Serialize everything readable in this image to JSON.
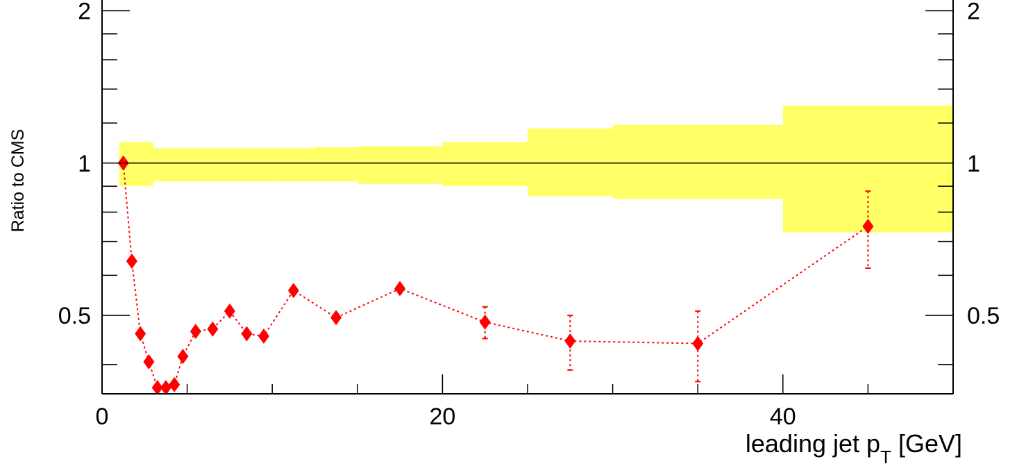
{
  "chart_data": {
    "type": "scatter",
    "title": "",
    "xlabel": "leading jet p",
    "xlabel_sub": "T",
    "xlabel_unit": " [GeV]",
    "ylabel": "Ratio to CMS",
    "xlim": [
      0,
      50
    ],
    "ylim": [
      0.35,
      2.1
    ],
    "x_ticks": [
      0,
      20,
      40
    ],
    "y_ticks": [
      0.5,
      1,
      2
    ],
    "y_tick_labels": [
      "0.5",
      "1",
      "2"
    ],
    "y_scale": "log",
    "reference_line": 1,
    "colors": {
      "band": "#ffff66",
      "points": "#ff0000",
      "axes": "#000000"
    },
    "uncertainty_band": {
      "name": "",
      "bins": [
        {
          "x0": 1,
          "x1": 3,
          "lo": 0.9,
          "hi": 1.1
        },
        {
          "x0": 3,
          "x1": 7,
          "lo": 0.92,
          "hi": 1.07
        },
        {
          "x0": 7,
          "x1": 10,
          "lo": 0.92,
          "hi": 1.07
        },
        {
          "x0": 10,
          "x1": 12.5,
          "lo": 0.92,
          "hi": 1.07
        },
        {
          "x0": 12.5,
          "x1": 15,
          "lo": 0.92,
          "hi": 1.075
        },
        {
          "x0": 15,
          "x1": 20,
          "lo": 0.91,
          "hi": 1.08
        },
        {
          "x0": 20,
          "x1": 25,
          "lo": 0.9,
          "hi": 1.1
        },
        {
          "x0": 25,
          "x1": 30,
          "lo": 0.86,
          "hi": 1.17
        },
        {
          "x0": 30,
          "x1": 40,
          "lo": 0.85,
          "hi": 1.19
        },
        {
          "x0": 40,
          "x1": 50,
          "lo": 0.73,
          "hi": 1.3
        }
      ]
    },
    "series": [
      {
        "name": "",
        "marker": "diamond",
        "line": "dotted",
        "x": [
          1.25,
          1.75,
          2.25,
          2.75,
          3.25,
          3.75,
          4.25,
          4.75,
          5.5,
          6.5,
          7.5,
          8.5,
          9.5,
          11.25,
          13.75,
          17.5,
          22.5,
          27.5,
          35,
          45
        ],
        "y": [
          1.0,
          0.64,
          0.46,
          0.405,
          0.36,
          0.36,
          0.365,
          0.415,
          0.465,
          0.47,
          0.51,
          0.46,
          0.455,
          0.56,
          0.495,
          0.565,
          0.485,
          0.445,
          0.44,
          0.75
        ],
        "yerr": [
          0,
          0,
          0,
          0,
          0,
          0,
          0,
          0,
          0,
          0,
          0,
          0,
          0,
          0,
          0,
          0,
          0.035,
          0.055,
          0.07,
          0.13
        ]
      }
    ]
  }
}
